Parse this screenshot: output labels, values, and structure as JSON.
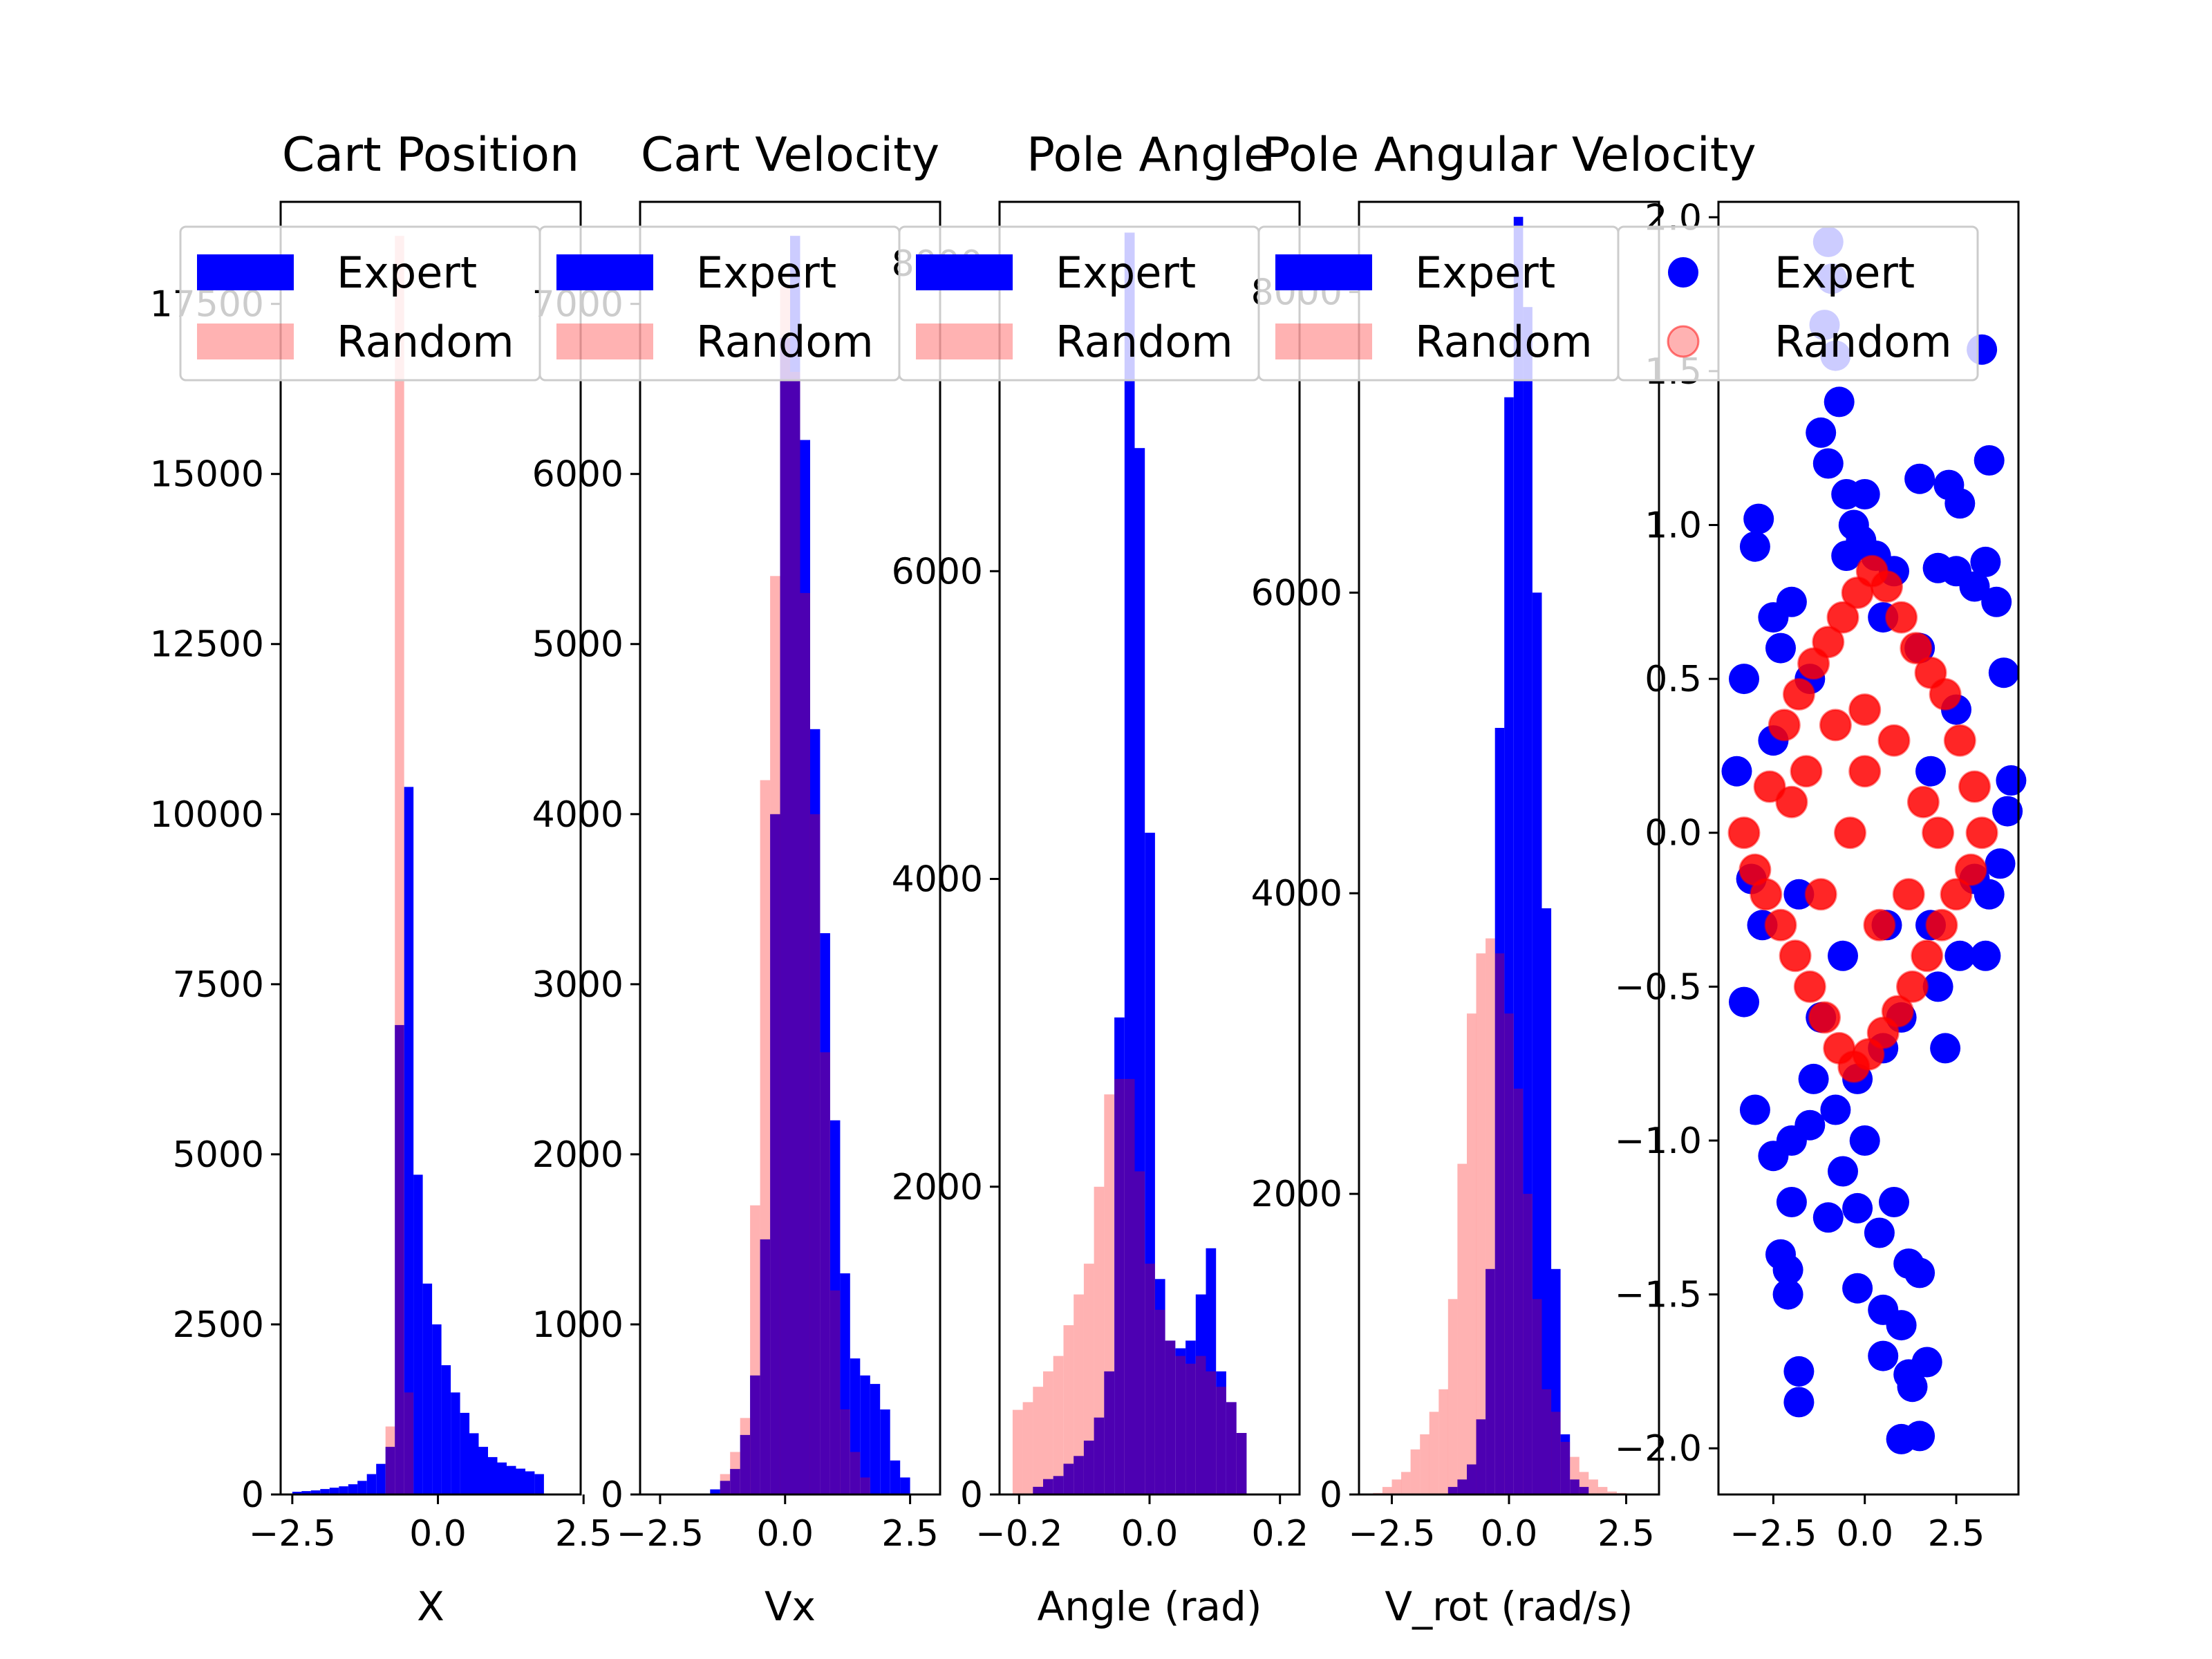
{
  "colors": {
    "expert": "#0000ff",
    "random": "#ff0000",
    "random_alpha": 0.3,
    "overlap": "#4c00b2",
    "background": "#ffffff",
    "axis": "#000000"
  },
  "chart_data": [
    {
      "type": "histogram",
      "title": "Cart Position",
      "xlabel": "X",
      "ylabel": "",
      "xlim": [
        -2.7,
        2.45
      ],
      "ylim": [
        0,
        19000
      ],
      "xticks": [
        -2.5,
        0.0,
        2.5
      ],
      "xtick_labels": [
        "−2.5",
        "0.0",
        "2.5"
      ],
      "yticks": [
        0,
        2500,
        5000,
        7500,
        10000,
        12500,
        15000,
        17500
      ],
      "ytick_labels": [
        "0",
        "2500",
        "5000",
        "7500",
        "10000",
        "12500",
        "15000",
        "17500"
      ],
      "legend": {
        "location": "upper center",
        "entries": [
          "Expert",
          "Random"
        ]
      },
      "bins": {
        "start": -2.5,
        "width": 0.16,
        "expert": [
          40,
          50,
          60,
          80,
          100,
          120,
          150,
          200,
          300,
          450,
          700,
          6900,
          10400,
          4700,
          3100,
          2500,
          1900,
          1500,
          1200,
          900,
          700,
          550,
          470,
          420,
          380,
          340,
          300
        ],
        "random": [
          0,
          0,
          0,
          0,
          0,
          0,
          0,
          0,
          0,
          0,
          1000,
          18500,
          1500,
          0,
          0,
          0,
          0,
          0,
          0,
          0,
          0,
          0,
          0,
          0,
          0,
          0,
          0
        ]
      }
    },
    {
      "type": "histogram",
      "title": "Cart Velocity",
      "xlabel": "Vx",
      "ylabel": "",
      "xlim": [
        -2.9,
        3.1
      ],
      "ylim": [
        0,
        7600
      ],
      "xticks": [
        -2.5,
        0.0,
        2.5
      ],
      "xtick_labels": [
        "−2.5",
        "0.0",
        "2.5"
      ],
      "yticks": [
        0,
        1000,
        2000,
        3000,
        4000,
        5000,
        6000,
        7000
      ],
      "ytick_labels": [
        "0",
        "1000",
        "2000",
        "3000",
        "4000",
        "5000",
        "6000",
        "7000"
      ],
      "legend": {
        "location": "upper center",
        "entries": [
          "Expert",
          "Random"
        ]
      },
      "bins": {
        "start": -2.5,
        "width": 0.2,
        "expert": [
          0,
          0,
          0,
          0,
          0,
          30,
          80,
          150,
          350,
          700,
          1500,
          4000,
          6800,
          7400,
          6200,
          4500,
          3300,
          2200,
          1300,
          800,
          700,
          650,
          500,
          200,
          100,
          0,
          0,
          0
        ],
        "random": [
          0,
          0,
          0,
          0,
          0,
          0,
          120,
          250,
          450,
          1700,
          4200,
          5400,
          7100,
          6600,
          5300,
          4000,
          2600,
          1200,
          500,
          250,
          100,
          0,
          0,
          0,
          0,
          0,
          0,
          0
        ]
      }
    },
    {
      "type": "histogram",
      "title": "Pole Angle",
      "xlabel": "Angle (rad)",
      "ylabel": "",
      "xlim": [
        -0.23,
        0.23
      ],
      "ylim": [
        0,
        8400
      ],
      "xticks": [
        -0.2,
        0.0,
        0.2
      ],
      "xtick_labels": [
        "−0.2",
        "0.0",
        "0.2"
      ],
      "yticks": [
        0,
        2000,
        4000,
        6000,
        8000
      ],
      "ytick_labels": [
        "0",
        "2000",
        "4000",
        "6000",
        "8000"
      ],
      "legend": {
        "location": "upper center",
        "entries": [
          "Expert",
          "Random"
        ]
      },
      "bins": {
        "start": -0.21,
        "width": 0.0156,
        "expert": [
          0,
          0,
          50,
          100,
          120,
          200,
          250,
          350,
          500,
          800,
          3100,
          8200,
          6800,
          4300,
          1400,
          1000,
          950,
          1000,
          1300,
          1600,
          800,
          600,
          400,
          0,
          0,
          0,
          0
        ],
        "random": [
          550,
          600,
          700,
          800,
          900,
          1100,
          1300,
          1500,
          2000,
          2600,
          2700,
          2700,
          2100,
          1500,
          1200,
          1000,
          900,
          850,
          900,
          800,
          700,
          600,
          400,
          0,
          0,
          0,
          0
        ]
      }
    },
    {
      "type": "histogram",
      "title": "Pole Angular Velocity",
      "xlabel": "V_rot (rad/s)",
      "ylabel": "",
      "xlim": [
        -3.2,
        3.2
      ],
      "ylim": [
        0,
        8600
      ],
      "xticks": [
        -2.5,
        0.0,
        2.5
      ],
      "xtick_labels": [
        "−2.5",
        "0.0",
        "2.5"
      ],
      "yticks": [
        0,
        2000,
        4000,
        6000,
        8000
      ],
      "ytick_labels": [
        "0",
        "2000",
        "4000",
        "6000",
        "8000"
      ],
      "legend": {
        "location": "upper center",
        "entries": [
          "Expert",
          "Random"
        ]
      },
      "bins": {
        "start": -2.9,
        "width": 0.2,
        "expert": [
          0,
          0,
          0,
          0,
          0,
          0,
          0,
          0,
          50,
          100,
          200,
          500,
          1500,
          5100,
          7300,
          8500,
          7900,
          6000,
          3900,
          1500,
          400,
          100,
          50,
          0,
          0,
          0,
          0,
          0,
          0
        ],
        "random": [
          10,
          50,
          100,
          150,
          300,
          400,
          550,
          700,
          1300,
          2200,
          3200,
          3600,
          3700,
          3600,
          3200,
          2700,
          2000,
          1300,
          700,
          550,
          350,
          250,
          150,
          100,
          50,
          20,
          10,
          0,
          0
        ]
      }
    },
    {
      "type": "scatter",
      "title": "",
      "xlabel": "",
      "ylabel": "",
      "xlim": [
        -4.0,
        4.2
      ],
      "ylim": [
        -2.15,
        2.05
      ],
      "xticks": [
        -2.5,
        0.0,
        2.5
      ],
      "xtick_labels": [
        "−2.5",
        "0.0",
        "2.5"
      ],
      "yticks": [
        -2.0,
        -1.5,
        -1.0,
        -0.5,
        0.0,
        0.5,
        1.0,
        1.5,
        2.0
      ],
      "ytick_labels": [
        "−2.0",
        "−1.5",
        "−1.0",
        "−0.5",
        "0.0",
        "0.5",
        "1.0",
        "1.5",
        "2.0"
      ],
      "legend": {
        "location": "upper center",
        "entries": [
          "Expert",
          "Random"
        ]
      },
      "series": [
        {
          "name": "Expert",
          "points": [
            [
              -2.9,
              1.02
            ],
            [
              -3.0,
              0.93
            ],
            [
              -2.5,
              0.7
            ],
            [
              -2.0,
              0.75
            ],
            [
              -2.3,
              0.6
            ],
            [
              -3.3,
              0.5
            ],
            [
              -1.0,
              1.92
            ],
            [
              -0.9,
              1.8
            ],
            [
              -1.1,
              1.65
            ],
            [
              -0.8,
              1.55
            ],
            [
              -0.7,
              1.4
            ],
            [
              -1.2,
              1.3
            ],
            [
              -1.0,
              1.2
            ],
            [
              -0.5,
              1.1
            ],
            [
              -0.3,
              1.0
            ],
            [
              -0.1,
              0.95
            ],
            [
              0.3,
              0.9
            ],
            [
              0.8,
              0.85
            ],
            [
              1.5,
              1.15
            ],
            [
              2.3,
              1.13
            ],
            [
              2.6,
              1.07
            ],
            [
              3.4,
              1.21
            ],
            [
              3.2,
              1.57
            ],
            [
              2.0,
              0.86
            ],
            [
              2.5,
              0.85
            ],
            [
              3.0,
              0.8
            ],
            [
              3.3,
              0.88
            ],
            [
              3.6,
              0.75
            ],
            [
              3.8,
              0.52
            ],
            [
              4.0,
              0.17
            ],
            [
              3.9,
              0.07
            ],
            [
              3.7,
              -0.1
            ],
            [
              3.4,
              -0.2
            ],
            [
              3.0,
              -0.15
            ],
            [
              2.6,
              -0.4
            ],
            [
              3.3,
              -0.4
            ],
            [
              2.0,
              -0.5
            ],
            [
              1.0,
              -0.6
            ],
            [
              0.5,
              -0.7
            ],
            [
              -0.2,
              -0.8
            ],
            [
              -0.8,
              -0.9
            ],
            [
              -1.5,
              -0.95
            ],
            [
              -2.0,
              -1.0
            ],
            [
              -2.5,
              -1.05
            ],
            [
              -3.0,
              -0.9
            ],
            [
              -3.3,
              -0.55
            ],
            [
              -3.1,
              -0.15
            ],
            [
              -3.5,
              0.2
            ],
            [
              -2.0,
              -1.2
            ],
            [
              -1.0,
              -1.25
            ],
            [
              -2.3,
              -1.37
            ],
            [
              -2.1,
              -1.42
            ],
            [
              -2.1,
              -1.5
            ],
            [
              -1.8,
              -1.75
            ],
            [
              -1.8,
              -1.85
            ],
            [
              -0.2,
              -1.22
            ],
            [
              0.8,
              -1.2
            ],
            [
              1.2,
              -1.4
            ],
            [
              1.5,
              -1.43
            ],
            [
              -0.2,
              -1.48
            ],
            [
              0.5,
              -1.55
            ],
            [
              1.0,
              -1.6
            ],
            [
              0.5,
              -1.7
            ],
            [
              1.2,
              -1.76
            ],
            [
              1.3,
              -1.8
            ],
            [
              1.7,
              -1.72
            ],
            [
              1.0,
              -1.97
            ],
            [
              1.5,
              -1.96
            ],
            [
              0.0,
              1.1
            ],
            [
              -0.5,
              0.9
            ],
            [
              0.5,
              0.7
            ],
            [
              1.5,
              0.6
            ],
            [
              -1.5,
              0.5
            ],
            [
              -2.5,
              0.3
            ],
            [
              2.5,
              0.4
            ],
            [
              1.8,
              0.2
            ],
            [
              -1.8,
              -0.2
            ],
            [
              -0.6,
              -0.4
            ],
            [
              0.6,
              -0.3
            ],
            [
              1.8,
              -0.3
            ],
            [
              -2.8,
              -0.3
            ],
            [
              2.2,
              -0.7
            ],
            [
              -1.2,
              -0.6
            ],
            [
              0.0,
              -1.0
            ],
            [
              -0.6,
              -1.1
            ],
            [
              0.4,
              -1.3
            ],
            [
              -1.4,
              -0.8
            ]
          ]
        },
        {
          "name": "Random",
          "points": [
            [
              -3.3,
              0.0
            ],
            [
              -3.0,
              -0.12
            ],
            [
              -2.6,
              0.15
            ],
            [
              -2.2,
              0.35
            ],
            [
              -1.8,
              0.45
            ],
            [
              -1.4,
              0.55
            ],
            [
              -1.0,
              0.62
            ],
            [
              -0.6,
              0.7
            ],
            [
              -0.2,
              0.78
            ],
            [
              0.2,
              0.85
            ],
            [
              0.6,
              0.8
            ],
            [
              1.0,
              0.7
            ],
            [
              1.4,
              0.6
            ],
            [
              1.8,
              0.52
            ],
            [
              2.2,
              0.45
            ],
            [
              2.6,
              0.3
            ],
            [
              3.0,
              0.15
            ],
            [
              3.2,
              0.0
            ],
            [
              2.9,
              -0.12
            ],
            [
              2.5,
              -0.2
            ],
            [
              2.1,
              -0.3
            ],
            [
              1.7,
              -0.4
            ],
            [
              1.3,
              -0.5
            ],
            [
              0.9,
              -0.58
            ],
            [
              0.5,
              -0.65
            ],
            [
              0.1,
              -0.72
            ],
            [
              -0.3,
              -0.76
            ],
            [
              -0.7,
              -0.7
            ],
            [
              -1.1,
              -0.6
            ],
            [
              -1.5,
              -0.5
            ],
            [
              -1.9,
              -0.4
            ],
            [
              -2.3,
              -0.3
            ],
            [
              -2.7,
              -0.2
            ],
            [
              -1.6,
              0.2
            ],
            [
              -0.8,
              0.35
            ],
            [
              0.0,
              0.4
            ],
            [
              0.8,
              0.3
            ],
            [
              1.6,
              0.1
            ],
            [
              -1.2,
              -0.2
            ],
            [
              0.4,
              -0.3
            ],
            [
              1.2,
              -0.2
            ],
            [
              -0.4,
              0.0
            ],
            [
              0.0,
              0.2
            ],
            [
              2.0,
              0.0
            ],
            [
              -2.0,
              0.1
            ]
          ]
        }
      ]
    }
  ]
}
